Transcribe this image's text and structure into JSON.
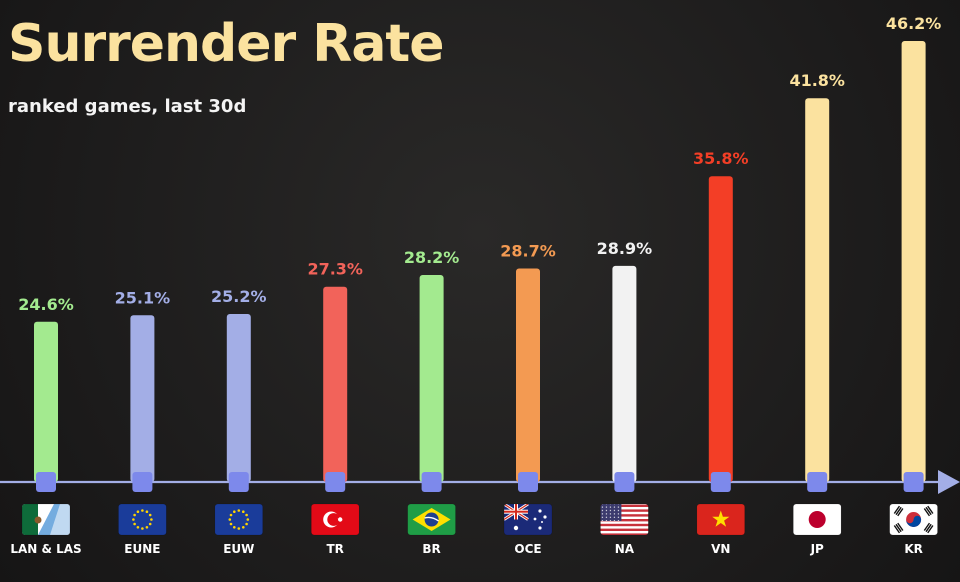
{
  "chart_data": {
    "type": "bar",
    "title": "Surrender Rate",
    "subtitle": "ranked games, last 30d",
    "unit": "%",
    "categories": [
      "LAN & LAS",
      "EUNE",
      "EUW",
      "TR",
      "BR",
      "OCE",
      "NA",
      "VN",
      "JP",
      "KR"
    ],
    "values": [
      24.6,
      25.1,
      25.2,
      27.3,
      28.2,
      28.7,
      28.9,
      35.8,
      41.8,
      46.2
    ],
    "value_labels": [
      "24.6%",
      "25.1%",
      "25.2%",
      "27.3%",
      "28.2%",
      "28.7%",
      "28.9%",
      "35.8%",
      "41.8%",
      "46.2%"
    ],
    "bar_colors": [
      "#a3ea8f",
      "#a3aee6",
      "#a3aee6",
      "#f2635a",
      "#a3ea8f",
      "#f39a52",
      "#f2f2f2",
      "#f33e26",
      "#fbe29f",
      "#fbe29f"
    ],
    "flag_icons": [
      "mexico-argentina-flag-icon",
      "eu-flag-icon",
      "eu-flag-icon",
      "turkey-flag-icon",
      "brazil-flag-icon",
      "australia-flag-icon",
      "usa-flag-icon",
      "vietnam-flag-icon",
      "japan-flag-icon",
      "korea-flag-icon"
    ],
    "axis_color": "#a3aee6",
    "marker_color": "#7d89eb",
    "title_color": "#fbe29f",
    "grid": false,
    "legend": "none"
  }
}
